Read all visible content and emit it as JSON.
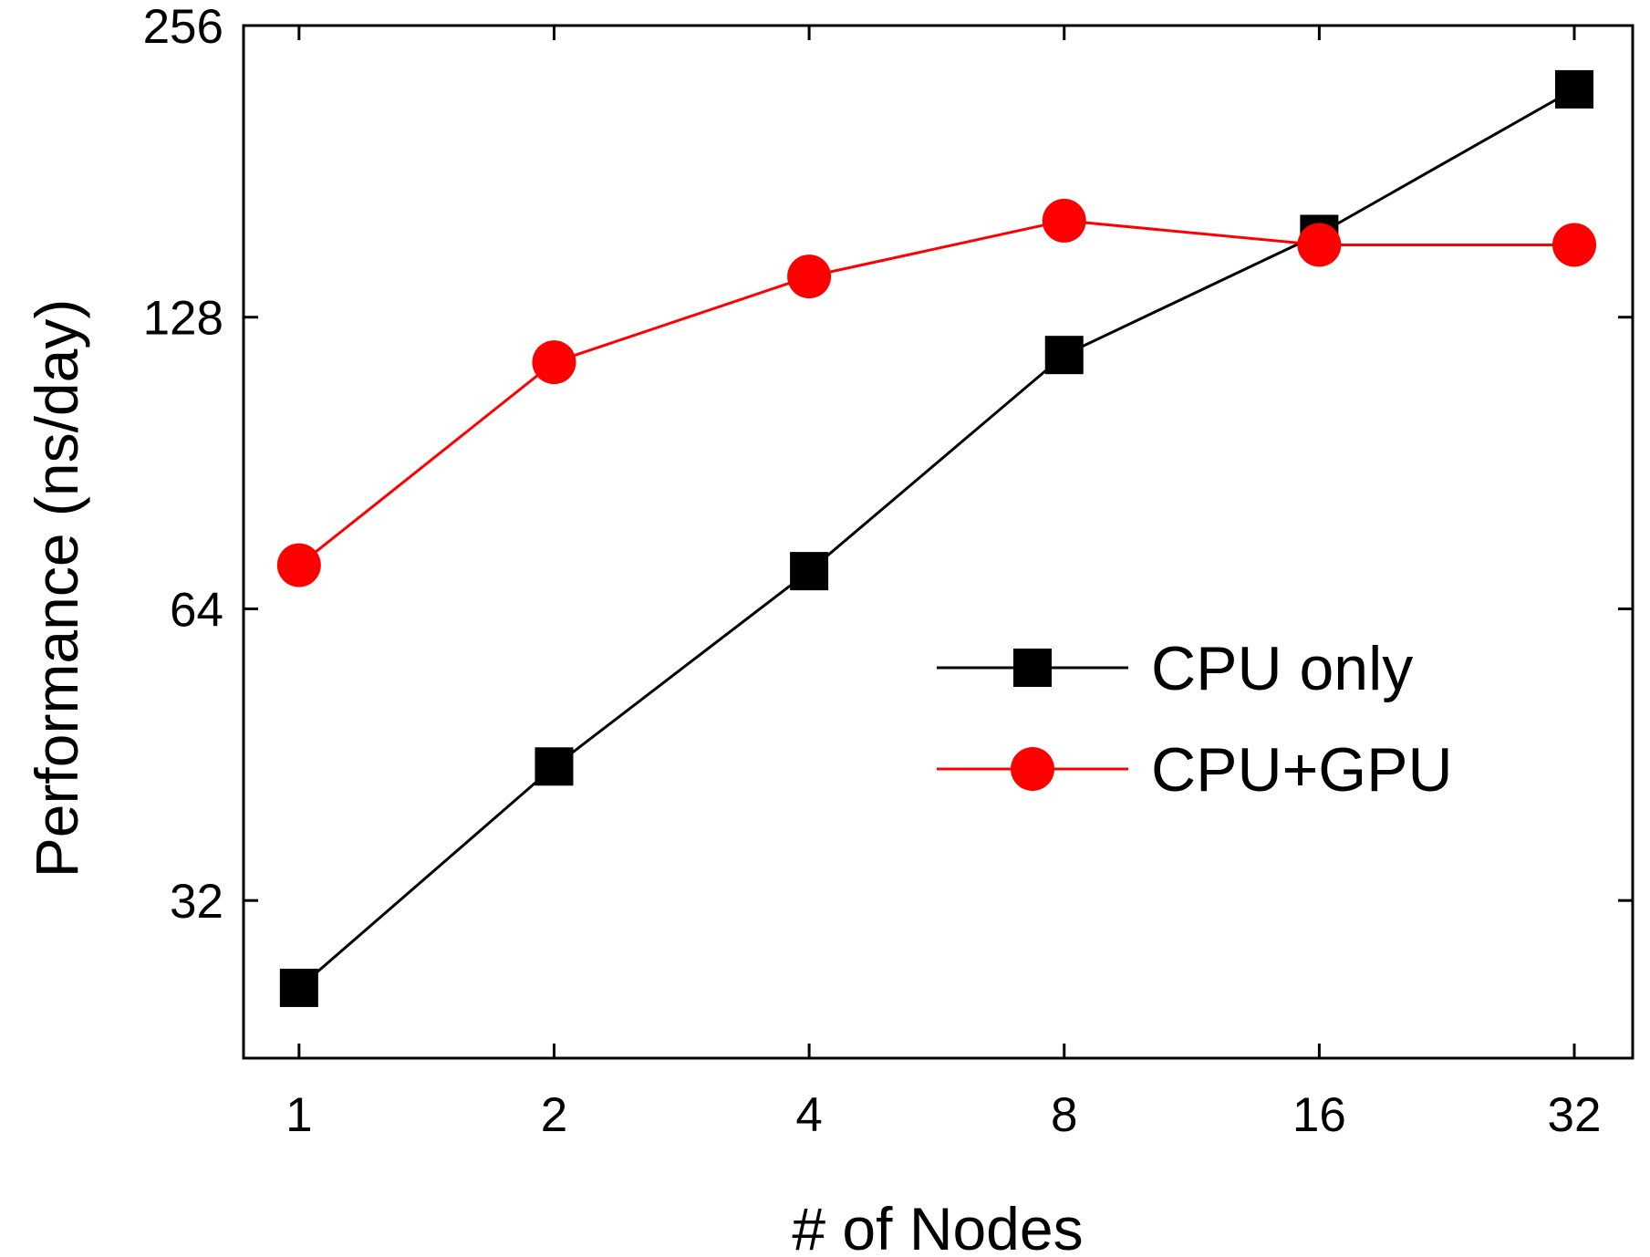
{
  "chart_data": {
    "type": "line",
    "xlabel": "# of Nodes",
    "ylabel": "Performance (ns/day)",
    "xscale": "log2",
    "yscale": "log2",
    "xlim": [
      0.86,
      37.5
    ],
    "ylim": [
      22,
      256
    ],
    "x": [
      1,
      2,
      4,
      8,
      16,
      32
    ],
    "x_tick_labels": [
      "1",
      "2",
      "4",
      "8",
      "16",
      "32"
    ],
    "y_ticks": [
      32,
      64,
      128,
      256
    ],
    "y_tick_labels": [
      "32",
      "64",
      "128",
      "256"
    ],
    "grid": false,
    "legend_position": "right",
    "series": [
      {
        "name": "CPU only",
        "color": "#000000",
        "marker": "square",
        "values": [
          26,
          44,
          70,
          117,
          156,
          220
        ]
      },
      {
        "name": "CPU+GPU",
        "color": "#ff0000",
        "marker": "circle",
        "values": [
          71,
          115,
          141,
          161,
          152,
          152
        ]
      }
    ]
  }
}
